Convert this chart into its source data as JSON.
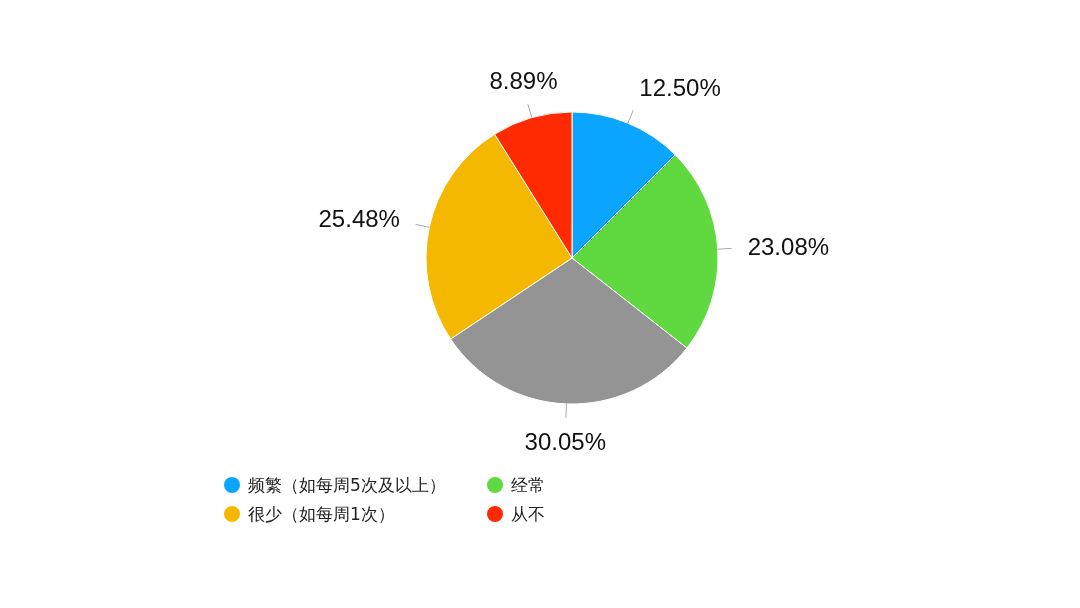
{
  "chart_data": {
    "type": "pie",
    "categories": [
      "频繁（如每周5次及以上）",
      "经常",
      null,
      "很少（如每周1次）",
      "从不"
    ],
    "values": [
      12.5,
      23.08,
      30.05,
      25.48,
      8.89
    ],
    "value_labels": [
      "12.50%",
      "23.08%",
      "30.05%",
      "25.48%",
      "8.89%"
    ],
    "colors": [
      "#0aa5ff",
      "#5fd93f",
      "#949494",
      "#f5b800",
      "#ff2a00"
    ],
    "legend": "bottom"
  }
}
